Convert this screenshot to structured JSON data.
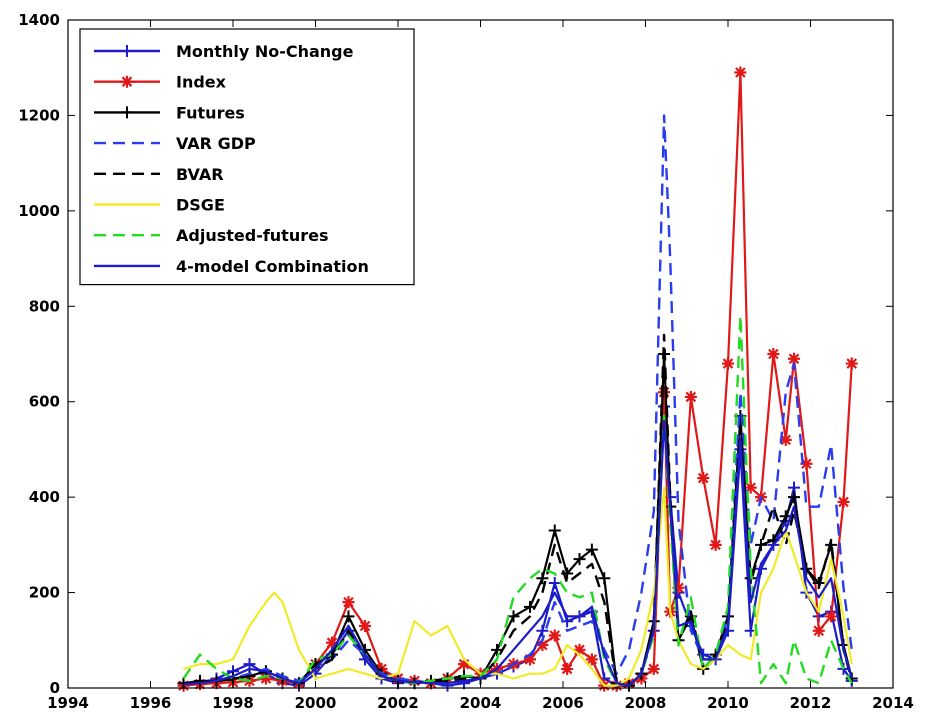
{
  "chart_data": {
    "type": "line",
    "title": "",
    "xlabel": "",
    "ylabel": "",
    "xlim": [
      1994,
      2014
    ],
    "ylim": [
      0,
      1400
    ],
    "xticks": [
      1994,
      1996,
      1998,
      2000,
      2002,
      2004,
      2006,
      2008,
      2010,
      2012,
      2014
    ],
    "yticks": [
      0,
      200,
      400,
      600,
      800,
      1000,
      1200,
      1400
    ],
    "grid": false,
    "legend_position": "top-left",
    "series": [
      {
        "name": "Monthly No-Change",
        "color": "#1c1cc8",
        "dash": "solid",
        "marker": "plus",
        "x": [
          1996.8,
          1997.2,
          1997.6,
          1998.0,
          1998.4,
          1998.8,
          1999.2,
          1999.6,
          2000.0,
          2000.4,
          2000.8,
          2001.2,
          2001.6,
          2002.0,
          2002.4,
          2002.8,
          2003.2,
          2003.6,
          2004.0,
          2004.4,
          2004.8,
          2005.2,
          2005.5,
          2005.8,
          2006.1,
          2006.4,
          2006.7,
          2007.0,
          2007.3,
          2007.6,
          2007.9,
          2008.2,
          2008.45,
          2008.6,
          2008.8,
          2009.1,
          2009.4,
          2009.7,
          2010.0,
          2010.3,
          2010.55,
          2010.8,
          2011.1,
          2011.4,
          2011.6,
          2011.9,
          2012.2,
          2012.5,
          2012.8,
          2013.0
        ],
        "y": [
          5,
          10,
          20,
          35,
          50,
          30,
          10,
          5,
          30,
          70,
          120,
          60,
          20,
          10,
          15,
          10,
          5,
          10,
          20,
          30,
          45,
          60,
          120,
          220,
          140,
          150,
          160,
          20,
          5,
          5,
          30,
          120,
          590,
          400,
          200,
          130,
          70,
          60,
          120,
          500,
          120,
          250,
          300,
          350,
          420,
          200,
          150,
          160,
          40,
          15
        ]
      },
      {
        "name": "Index",
        "color": "#e01818",
        "dash": "solid",
        "marker": "star",
        "x": [
          1996.8,
          1997.2,
          1997.6,
          1998.0,
          1998.4,
          1998.8,
          1999.2,
          1999.6,
          2000.0,
          2000.4,
          2000.8,
          2001.2,
          2001.6,
          2002.0,
          2002.4,
          2002.8,
          2003.2,
          2003.6,
          2004.0,
          2004.4,
          2004.8,
          2005.2,
          2005.5,
          2005.8,
          2006.1,
          2006.4,
          2006.7,
          2007.0,
          2007.3,
          2007.6,
          2007.9,
          2008.2,
          2008.45,
          2008.6,
          2008.8,
          2009.1,
          2009.4,
          2009.7,
          2010.0,
          2010.3,
          2010.55,
          2010.8,
          2011.1,
          2011.4,
          2011.6,
          2011.9,
          2012.2,
          2012.5,
          2012.8,
          2013.0
        ],
        "y": [
          5,
          8,
          10,
          12,
          15,
          20,
          15,
          10,
          50,
          95,
          180,
          130,
          40,
          20,
          15,
          10,
          20,
          50,
          30,
          40,
          50,
          60,
          90,
          110,
          40,
          80,
          60,
          5,
          5,
          10,
          20,
          40,
          620,
          160,
          210,
          610,
          440,
          300,
          680,
          1290,
          420,
          400,
          700,
          520,
          690,
          470,
          120,
          150,
          390,
          680
        ]
      },
      {
        "name": "Futures",
        "color": "#000000",
        "dash": "solid",
        "marker": "plus",
        "x": [
          1996.8,
          1997.2,
          1997.6,
          1998.0,
          1998.4,
          1998.8,
          1999.2,
          1999.6,
          2000.0,
          2000.4,
          2000.8,
          2001.2,
          2001.6,
          2002.0,
          2002.4,
          2002.8,
          2003.2,
          2003.6,
          2004.0,
          2004.4,
          2004.8,
          2005.2,
          2005.5,
          2005.8,
          2006.1,
          2006.4,
          2006.7,
          2007.0,
          2007.3,
          2007.6,
          2007.9,
          2008.2,
          2008.45,
          2008.6,
          2008.8,
          2009.1,
          2009.4,
          2009.7,
          2010.0,
          2010.3,
          2010.55,
          2010.8,
          2011.1,
          2011.4,
          2011.6,
          2011.9,
          2012.2,
          2012.5,
          2012.8,
          2013.0
        ],
        "y": [
          10,
          15,
          15,
          20,
          25,
          35,
          20,
          10,
          50,
          70,
          150,
          80,
          30,
          15,
          10,
          15,
          20,
          25,
          20,
          80,
          150,
          170,
          230,
          330,
          240,
          270,
          290,
          230,
          10,
          5,
          30,
          140,
          700,
          380,
          100,
          150,
          40,
          70,
          150,
          570,
          230,
          300,
          310,
          360,
          400,
          250,
          220,
          300,
          90,
          20
        ]
      },
      {
        "name": "VAR GDP",
        "color": "#2a3cf0",
        "dash": "dashed",
        "marker": "none",
        "x": [
          1996.8,
          1997.2,
          1997.6,
          1998.0,
          1998.4,
          1998.8,
          1999.2,
          1999.6,
          2000.0,
          2000.4,
          2000.8,
          2001.2,
          2001.6,
          2002.0,
          2002.4,
          2002.8,
          2003.2,
          2003.6,
          2004.0,
          2004.4,
          2004.8,
          2005.2,
          2005.5,
          2005.8,
          2006.1,
          2006.4,
          2006.7,
          2007.0,
          2007.3,
          2007.6,
          2007.9,
          2008.2,
          2008.45,
          2008.6,
          2008.8,
          2009.1,
          2009.4,
          2009.7,
          2010.0,
          2010.3,
          2010.55,
          2010.8,
          2011.1,
          2011.4,
          2011.6,
          2011.9,
          2012.2,
          2012.5,
          2012.8,
          2013.0
        ],
        "y": [
          10,
          12,
          15,
          20,
          30,
          40,
          25,
          15,
          40,
          60,
          100,
          70,
          30,
          20,
          15,
          10,
          10,
          15,
          20,
          30,
          50,
          70,
          100,
          180,
          120,
          130,
          140,
          80,
          30,
          80,
          200,
          370,
          1200,
          900,
          350,
          120,
          60,
          60,
          150,
          620,
          300,
          400,
          350,
          620,
          680,
          380,
          380,
          510,
          210,
          80
        ]
      },
      {
        "name": "BVAR",
        "color": "#000000",
        "dash": "dashed",
        "marker": "none",
        "x": [
          1996.8,
          1997.2,
          1997.6,
          1998.0,
          1998.4,
          1998.8,
          1999.2,
          1999.6,
          2000.0,
          2000.4,
          2000.8,
          2001.2,
          2001.6,
          2002.0,
          2002.4,
          2002.8,
          2003.2,
          2003.6,
          2004.0,
          2004.4,
          2004.8,
          2005.2,
          2005.5,
          2005.8,
          2006.1,
          2006.4,
          2006.7,
          2007.0,
          2007.3,
          2007.6,
          2007.9,
          2008.2,
          2008.45,
          2008.6,
          2008.8,
          2009.1,
          2009.4,
          2009.7,
          2010.0,
          2010.3,
          2010.55,
          2010.8,
          2011.1,
          2011.4,
          2011.6,
          2011.9,
          2012.2,
          2012.5,
          2012.8,
          2013.0
        ],
        "y": [
          10,
          12,
          15,
          18,
          25,
          35,
          20,
          10,
          40,
          60,
          120,
          70,
          25,
          15,
          10,
          15,
          15,
          20,
          20,
          60,
          120,
          150,
          200,
          300,
          220,
          240,
          260,
          180,
          10,
          5,
          30,
          130,
          740,
          400,
          100,
          160,
          40,
          60,
          140,
          550,
          220,
          300,
          380,
          300,
          370,
          250,
          210,
          310,
          80,
          15
        ]
      },
      {
        "name": "DSGE",
        "color": "#f2ea28",
        "dash": "solid",
        "marker": "none",
        "x": [
          1996.8,
          1997.2,
          1997.6,
          1998.0,
          1998.4,
          1998.8,
          1999.0,
          1999.2,
          1999.6,
          2000.0,
          2000.4,
          2000.8,
          2001.2,
          2001.6,
          2002.0,
          2002.4,
          2002.8,
          2003.2,
          2003.6,
          2004.0,
          2004.4,
          2004.8,
          2005.2,
          2005.5,
          2005.8,
          2006.1,
          2006.4,
          2006.7,
          2007.0,
          2007.3,
          2007.6,
          2007.9,
          2008.2,
          2008.45,
          2008.6,
          2008.8,
          2009.1,
          2009.4,
          2009.7,
          2010.0,
          2010.3,
          2010.55,
          2010.8,
          2011.1,
          2011.4,
          2011.6,
          2011.9,
          2012.2,
          2012.5,
          2012.8,
          2013.0
        ],
        "y": [
          40,
          50,
          50,
          60,
          130,
          180,
          200,
          180,
          80,
          20,
          30,
          40,
          30,
          20,
          30,
          140,
          110,
          130,
          60,
          30,
          30,
          20,
          30,
          30,
          40,
          90,
          70,
          40,
          5,
          5,
          20,
          80,
          200,
          420,
          160,
          100,
          50,
          40,
          60,
          90,
          70,
          60,
          200,
          250,
          330,
          280,
          200,
          160,
          270,
          150,
          50
        ]
      },
      {
        "name": "Adjusted-futures",
        "color": "#22dc22",
        "dash": "dashed",
        "marker": "none",
        "x": [
          1996.8,
          1997.2,
          1997.6,
          1998.0,
          1998.4,
          1998.8,
          1999.2,
          1999.6,
          2000.0,
          2000.4,
          2000.8,
          2001.2,
          2001.6,
          2002.0,
          2002.4,
          2002.8,
          2003.2,
          2003.6,
          2004.0,
          2004.4,
          2004.8,
          2005.2,
          2005.5,
          2005.8,
          2006.1,
          2006.4,
          2006.7,
          2007.0,
          2007.3,
          2007.6,
          2007.9,
          2008.2,
          2008.45,
          2008.6,
          2008.8,
          2009.1,
          2009.4,
          2009.7,
          2010.0,
          2010.3,
          2010.55,
          2010.8,
          2011.1,
          2011.4,
          2011.6,
          2011.9,
          2012.2,
          2012.5,
          2012.8,
          2013.0
        ],
        "y": [
          20,
          70,
          40,
          20,
          15,
          25,
          20,
          10,
          60,
          70,
          110,
          70,
          25,
          15,
          10,
          15,
          20,
          25,
          25,
          60,
          190,
          230,
          250,
          240,
          200,
          190,
          200,
          60,
          10,
          5,
          30,
          110,
          570,
          350,
          90,
          190,
          40,
          70,
          170,
          780,
          250,
          10,
          50,
          10,
          100,
          20,
          10,
          100,
          40,
          10
        ]
      },
      {
        "name": "4-model Combination",
        "color": "#1c1cc8",
        "dash": "solid",
        "marker": "none",
        "x": [
          1996.8,
          1997.2,
          1997.6,
          1998.0,
          1998.4,
          1998.8,
          1999.2,
          1999.6,
          2000.0,
          2000.4,
          2000.8,
          2001.2,
          2001.6,
          2002.0,
          2002.4,
          2002.8,
          2003.2,
          2003.6,
          2004.0,
          2004.4,
          2004.8,
          2005.2,
          2005.5,
          2005.8,
          2006.1,
          2006.4,
          2006.7,
          2007.0,
          2007.3,
          2007.6,
          2007.9,
          2008.2,
          2008.45,
          2008.6,
          2008.8,
          2009.1,
          2009.4,
          2009.7,
          2010.0,
          2010.3,
          2010.55,
          2010.8,
          2011.1,
          2011.4,
          2011.6,
          2011.9,
          2012.2,
          2012.5,
          2012.8,
          2013.0
        ],
        "y": [
          8,
          10,
          15,
          25,
          40,
          35,
          20,
          10,
          40,
          80,
          130,
          70,
          25,
          15,
          12,
          10,
          10,
          15,
          20,
          40,
          80,
          120,
          150,
          200,
          150,
          150,
          170,
          70,
          10,
          5,
          30,
          120,
          560,
          380,
          130,
          140,
          60,
          60,
          130,
          520,
          180,
          260,
          300,
          330,
          380,
          230,
          190,
          230,
          80,
          20
        ]
      }
    ]
  }
}
